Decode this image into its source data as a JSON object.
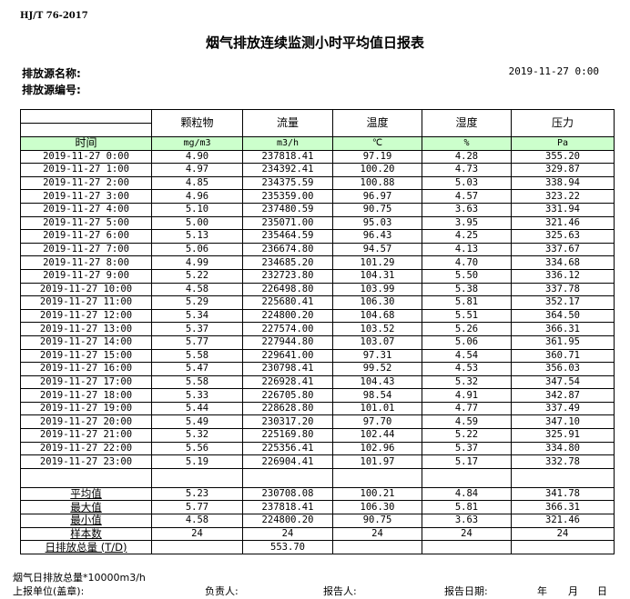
{
  "standard": "HJ/T  76-2017",
  "title": "烟气排放连续监测小时平均值日报表",
  "source_name_label": "排放源名称:",
  "source_no_label": "排放源编号:",
  "report_datetime": "2019-11-27  0:00",
  "table": {
    "columns": [
      "颗粒物",
      "流量",
      "温度",
      "湿度",
      "压力"
    ],
    "time_label": "时间",
    "units": [
      "mg/m3",
      "m3/h",
      "℃",
      "%",
      "Pa"
    ],
    "rows": [
      [
        "2019-11-27 0:00",
        "4.90",
        "237818.41",
        "97.19",
        "4.28",
        "355.20"
      ],
      [
        "2019-11-27 1:00",
        "4.97",
        "234392.41",
        "100.20",
        "4.73",
        "329.87"
      ],
      [
        "2019-11-27 2:00",
        "4.85",
        "234375.59",
        "100.88",
        "5.03",
        "338.94"
      ],
      [
        "2019-11-27 3:00",
        "4.96",
        "235359.00",
        "96.97",
        "4.57",
        "323.22"
      ],
      [
        "2019-11-27 4:00",
        "5.10",
        "237480.59",
        "90.75",
        "3.63",
        "331.94"
      ],
      [
        "2019-11-27 5:00",
        "5.00",
        "235071.00",
        "95.03",
        "3.95",
        "321.46"
      ],
      [
        "2019-11-27 6:00",
        "5.13",
        "235464.59",
        "96.43",
        "4.25",
        "325.63"
      ],
      [
        "2019-11-27 7:00",
        "5.06",
        "236674.80",
        "94.57",
        "4.13",
        "337.67"
      ],
      [
        "2019-11-27 8:00",
        "4.99",
        "234685.20",
        "101.29",
        "4.70",
        "334.68"
      ],
      [
        "2019-11-27 9:00",
        "5.22",
        "232723.80",
        "104.31",
        "5.50",
        "336.12"
      ],
      [
        "2019-11-27 10:00",
        "4.58",
        "226498.80",
        "103.99",
        "5.38",
        "337.78"
      ],
      [
        "2019-11-27 11:00",
        "5.29",
        "225680.41",
        "106.30",
        "5.81",
        "352.17"
      ],
      [
        "2019-11-27 12:00",
        "5.34",
        "224800.20",
        "104.68",
        "5.51",
        "364.50"
      ],
      [
        "2019-11-27 13:00",
        "5.37",
        "227574.00",
        "103.52",
        "5.26",
        "366.31"
      ],
      [
        "2019-11-27 14:00",
        "5.77",
        "227944.80",
        "103.07",
        "5.06",
        "361.95"
      ],
      [
        "2019-11-27 15:00",
        "5.58",
        "229641.00",
        "97.31",
        "4.54",
        "360.71"
      ],
      [
        "2019-11-27 16:00",
        "5.47",
        "230798.41",
        "99.52",
        "4.53",
        "356.03"
      ],
      [
        "2019-11-27 17:00",
        "5.58",
        "226928.41",
        "104.43",
        "5.32",
        "347.54"
      ],
      [
        "2019-11-27 18:00",
        "5.33",
        "226705.80",
        "98.54",
        "4.91",
        "342.87"
      ],
      [
        "2019-11-27 19:00",
        "5.44",
        "228628.80",
        "101.01",
        "4.77",
        "337.49"
      ],
      [
        "2019-11-27 20:00",
        "5.49",
        "230317.20",
        "97.70",
        "4.59",
        "347.10"
      ],
      [
        "2019-11-27 21:00",
        "5.32",
        "225169.80",
        "102.44",
        "5.22",
        "325.91"
      ],
      [
        "2019-11-27 22:00",
        "5.56",
        "225356.41",
        "102.96",
        "5.37",
        "334.80"
      ],
      [
        "2019-11-27 23:00",
        "5.19",
        "226904.41",
        "101.97",
        "5.17",
        "332.78"
      ]
    ],
    "stats": [
      [
        "平均值",
        "5.23",
        "230708.08",
        "100.21",
        "4.84",
        "341.78"
      ],
      [
        "最大值",
        "5.77",
        "237818.41",
        "106.30",
        "5.81",
        "366.31"
      ],
      [
        "最小值",
        "4.58",
        "224800.20",
        "90.75",
        "3.63",
        "321.46"
      ],
      [
        "样本数",
        "24",
        "24",
        "24",
        "24",
        "24"
      ],
      [
        "日排放总量 (T/D)",
        "",
        "553.70",
        "",
        "",
        ""
      ]
    ]
  },
  "note": "烟气日排放总量*10000m3/h",
  "footer": {
    "unit": "上报单位(盖章):",
    "manager": "负责人:",
    "reporter": "报告人:",
    "report_date": "报告日期:",
    "year": "年",
    "month": "月",
    "day": "日"
  },
  "colors": {
    "unit_row_bg": "#ccffcc"
  }
}
